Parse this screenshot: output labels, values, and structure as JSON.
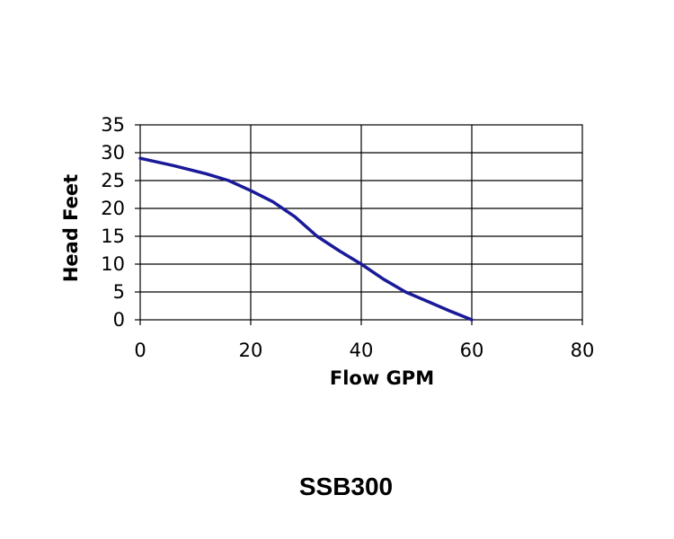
{
  "caption": "SSB300",
  "chart_data": {
    "type": "line",
    "xlabel": "Flow GPM",
    "ylabel": "Head Feet",
    "xlim": [
      0,
      80
    ],
    "ylim": [
      0,
      35
    ],
    "xticks": [
      0,
      20,
      40,
      60,
      80
    ],
    "yticks": [
      0,
      5,
      10,
      15,
      20,
      25,
      30,
      35
    ],
    "grid": true,
    "series_color": "#1a1a99",
    "series": [
      {
        "x": [
          0,
          6,
          12,
          16,
          20,
          24,
          28,
          32,
          36,
          40,
          44,
          48,
          52,
          56,
          60
        ],
        "y": [
          29,
          27.7,
          26.2,
          25,
          23.2,
          21.2,
          18.5,
          15,
          12.4,
          10,
          7.3,
          5,
          3.3,
          1.6,
          0
        ]
      }
    ]
  }
}
